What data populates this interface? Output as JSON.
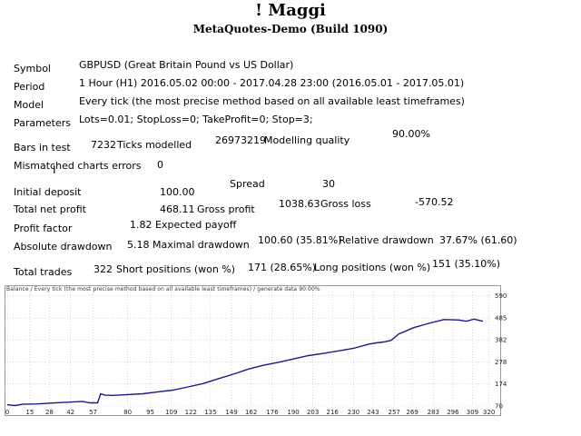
{
  "header": {
    "title": "! Maggi",
    "subtitle": "MetaQuotes-Demo (Build 1090)"
  },
  "report": {
    "symbol_label": "Symbol",
    "symbol_value": "GBPUSD (Great Britain Pound vs US Dollar)",
    "period_label": "Period",
    "period_value": "1 Hour (H1) 2016.05.02 00:00 - 2017.04.28 23:00 (2016.05.01 - 2017.05.01)",
    "model_label": "Model",
    "model_value": "Every tick (the most precise method based on all available least timeframes)",
    "parameters_label": "Parameters",
    "parameters_value": "Lots=0.01; StopLoss=0; TakeProfit=0; Stop=3;",
    "bars_label": "Bars in test",
    "bars_value": "7232",
    "ticks_label": "Ticks modelled",
    "ticks_value": "26973219",
    "quality_label": "Modelling quality",
    "quality_value": "90.00%",
    "mismatched_label": "Mismatched charts errors",
    "mismatched_value": "0",
    "initial_deposit_label": "Initial deposit",
    "initial_deposit_value": "100.00",
    "spread_label": "Spread",
    "spread_value": "30",
    "net_profit_label": "Total net profit",
    "net_profit_value": "468.11",
    "gross_profit_label": "Gross profit",
    "gross_profit_value": "1038.63",
    "gross_loss_label": "Gross loss",
    "gross_loss_value": "-570.52",
    "profit_factor_label": "Profit factor",
    "profit_factor_value": "1.82",
    "expected_payoff_label": "Expected payoff",
    "abs_drawdown_label": "Absolute drawdown",
    "abs_drawdown_value": "5.18",
    "max_drawdown_label": "Maximal drawdown",
    "max_drawdown_value": "100.60 (35.81%)",
    "rel_drawdown_label": "Relative drawdown",
    "rel_drawdown_value": "37.67% (61.60)",
    "total_trades_label": "Total trades",
    "total_trades_value": "322",
    "short_label": "Short positions (won %)",
    "short_value": "171 (28.65%)",
    "long_label": "Long positions (won %)",
    "long_value": "151 (35.10%)"
  },
  "chart_header": "Balance / Every tick (the most precise method based on all available least timeframes) / generate data 90.00%",
  "chart_data": {
    "type": "line",
    "series": [
      {
        "color": "#1a1a8c",
        "x": [
          0,
          5,
          10,
          20,
          30,
          40,
          50,
          55,
          60,
          62,
          65,
          70,
          80,
          90,
          100,
          110,
          120,
          130,
          140,
          150,
          160,
          170,
          180,
          190,
          200,
          210,
          220,
          230,
          240,
          245,
          250,
          255,
          260,
          270,
          280,
          290,
          300,
          305,
          310,
          316
        ],
        "y": [
          76,
          72,
          78,
          80,
          84,
          88,
          92,
          85,
          85,
          128,
          121,
          120,
          124,
          128,
          137,
          145,
          160,
          176,
          198,
          220,
          244,
          262,
          276,
          292,
          308,
          318,
          330,
          342,
          362,
          368,
          372,
          380,
          410,
          440,
          460,
          478,
          476,
          470,
          480,
          470
        ]
      }
    ],
    "x_ticks": [
      0,
      15,
      28,
      42,
      57,
      80,
      95,
      109,
      122,
      135,
      149,
      162,
      176,
      190,
      203,
      216,
      230,
      243,
      257,
      269,
      283,
      296,
      309,
      320
    ],
    "y_ticks": [
      70,
      174,
      278,
      382,
      485,
      590
    ],
    "xlim": [
      0,
      322
    ],
    "ylim": [
      70,
      610
    ],
    "line_color": "#1a1a8c"
  }
}
